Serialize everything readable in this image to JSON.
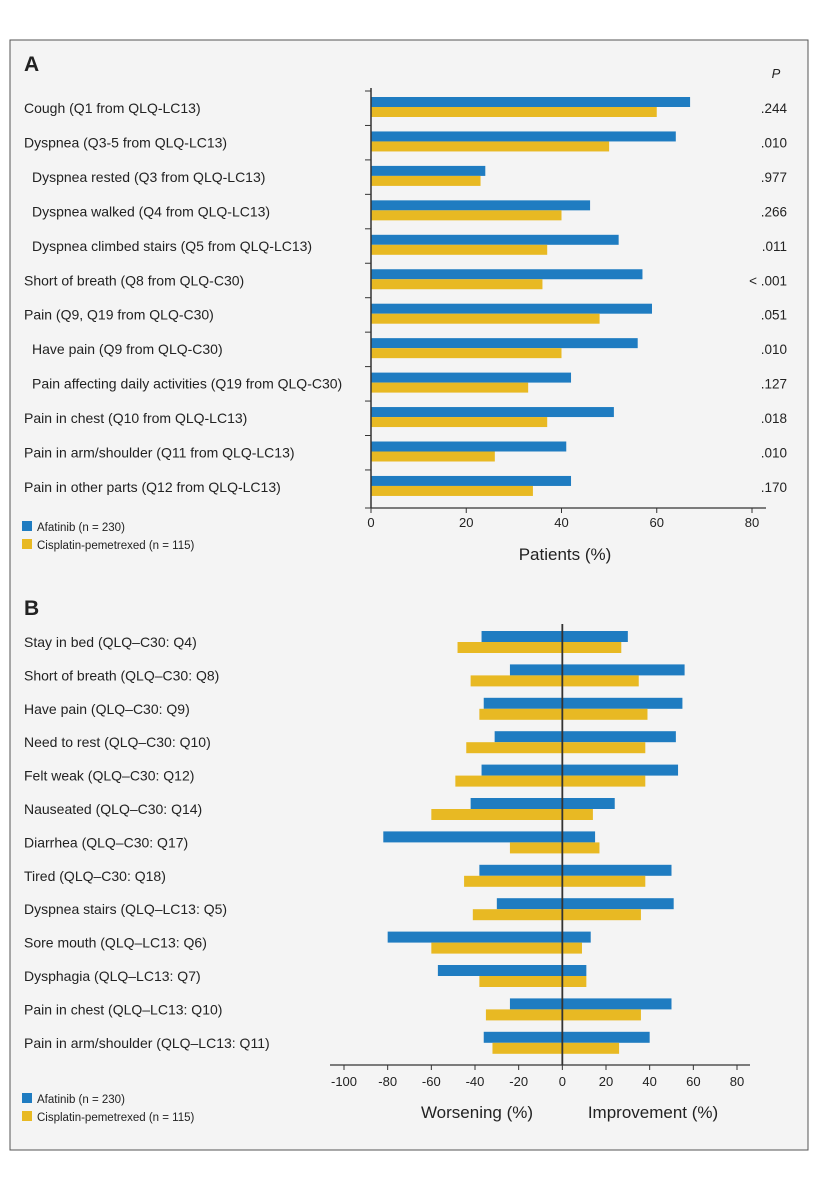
{
  "colors": {
    "afatinib": "#1f7cc1",
    "cisplatin": "#e8b923",
    "background": "#f4f4f4"
  },
  "chart_data": [
    {
      "type": "bar",
      "orientation": "horizontal",
      "panel_label": "A",
      "xlabel": "Patients (%)",
      "xlim": [
        0,
        80
      ],
      "xticks": [
        "0",
        "20",
        "40",
        "60",
        "80"
      ],
      "p_header": "P",
      "categories": [
        "Cough (Q1 from QLQ-LC13)",
        "Dyspnea (Q3-5 from QLQ-LC13)",
        "Dyspnea rested (Q3 from QLQ-LC13)",
        "Dyspnea walked (Q4 from QLQ-LC13)",
        "Dyspnea climbed stairs (Q5 from QLQ-LC13)",
        "Short of breath (Q8 from QLQ-C30)",
        "Pain (Q9, Q19 from QLQ-C30)",
        "Have pain (Q9 from QLQ-C30)",
        "Pain affecting daily activities (Q19 from QLQ-C30)",
        "Pain in chest (Q10 from QLQ-LC13)",
        "Pain in arm/shoulder (Q11 from QLQ-LC13)",
        "Pain in other parts (Q12 from QLQ-LC13)"
      ],
      "indented": [
        false,
        false,
        true,
        true,
        true,
        false,
        false,
        true,
        true,
        false,
        false,
        false
      ],
      "p_values": [
        ".244",
        ".010",
        ".977",
        ".266",
        ".011",
        "< .001",
        ".051",
        ".010",
        ".127",
        ".018",
        ".010",
        ".170"
      ],
      "series": [
        {
          "name": "Afatinib (n = 230)",
          "values": [
            67,
            64,
            24,
            46,
            52,
            57,
            59,
            56,
            42,
            51,
            41,
            42
          ]
        },
        {
          "name": "Cisplatin-pemetrexed (n = 115)",
          "values": [
            60,
            50,
            23,
            40,
            37,
            36,
            48,
            40,
            33,
            37,
            26,
            34
          ]
        }
      ],
      "legend_position": "bottom-left",
      "grid": false
    },
    {
      "type": "bar",
      "orientation": "horizontal-diverging",
      "panel_label": "B",
      "xlabel_left": "Worsening (%)",
      "xlabel_right": "Improvement (%)",
      "xlim": [
        -100,
        80
      ],
      "xticks": [
        "-100",
        "-80",
        "-60",
        "-40",
        "-20",
        "0",
        "20",
        "40",
        "60",
        "80"
      ],
      "categories": [
        "Stay in bed (QLQ–C30: Q4)",
        "Short of breath (QLQ–C30: Q8)",
        "Have pain (QLQ–C30: Q9)",
        "Need to rest (QLQ–C30: Q10)",
        "Felt weak (QLQ–C30: Q12)",
        "Nauseated (QLQ–C30: Q14)",
        "Diarrhea (QLQ–C30: Q17)",
        "Tired (QLQ–C30: Q18)",
        "Dyspnea stairs (QLQ–LC13: Q5)",
        "Sore mouth (QLQ–LC13: Q6)",
        "Dysphagia (QLQ–LC13: Q7)",
        "Pain in chest (QLQ–LC13: Q10)",
        "Pain in arm/shoulder (QLQ–LC13: Q11)"
      ],
      "series": [
        {
          "name": "Afatinib (n = 230)",
          "worsening": [
            -37,
            -24,
            -36,
            -31,
            -37,
            -42,
            -82,
            -38,
            -30,
            -80,
            -57,
            -24,
            -36
          ],
          "improvement": [
            30,
            56,
            55,
            52,
            53,
            24,
            15,
            50,
            51,
            13,
            11,
            50,
            40
          ]
        },
        {
          "name": "Cisplatin-pemetrexed (n = 115)",
          "worsening": [
            -48,
            -42,
            -38,
            -44,
            -49,
            -60,
            -24,
            -45,
            -41,
            -60,
            -38,
            -35,
            -32
          ],
          "improvement": [
            27,
            35,
            39,
            38,
            38,
            14,
            17,
            38,
            36,
            9,
            11,
            36,
            26
          ]
        }
      ],
      "legend_position": "bottom-left",
      "grid": false
    }
  ]
}
